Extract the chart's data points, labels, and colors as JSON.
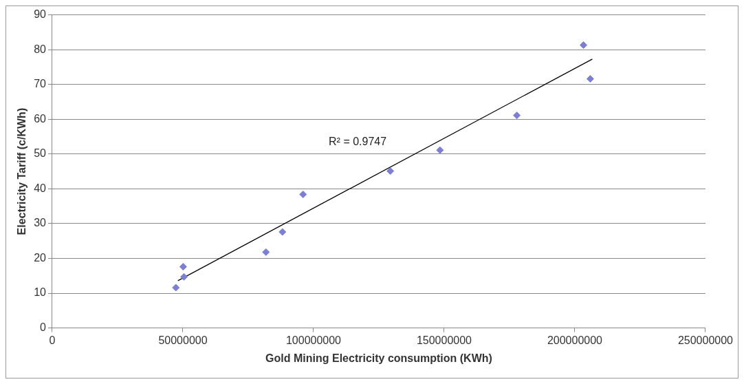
{
  "chart_data": {
    "type": "scatter",
    "xlabel": "Gold Mining Electricity consumption (KWh)",
    "ylabel": "Electricity Tariff (c/KWh)",
    "x": [
      47300000,
      50400000,
      50100000,
      81800000,
      88100000,
      96000000,
      129400000,
      148400000,
      177800000,
      203300000,
      205900000
    ],
    "series": [
      {
        "color": "#7b7fd8",
        "values": [
          11.6,
          14.7,
          17.6,
          21.8,
          27.6,
          38.4,
          45.1,
          51.1,
          61.1,
          81.3,
          71.6
        ]
      },
      {
        "type": "line",
        "color": "#000000",
        "x": [
          48100000,
          206700000
        ],
        "values": [
          13.6,
          77.3
        ],
        "marker": "none"
      }
    ],
    "xlim": [
      0,
      250000000
    ],
    "xticks": [
      0,
      50000000,
      100000000,
      150000000,
      200000000,
      250000000
    ],
    "ylim": [
      0,
      90
    ],
    "yticks": [
      0,
      10,
      20,
      30,
      40,
      50,
      60,
      70,
      80,
      90
    ],
    "grid": "y",
    "legend": false,
    "marker": "diamond",
    "annotations": [
      "R² = 0.9747"
    ]
  }
}
